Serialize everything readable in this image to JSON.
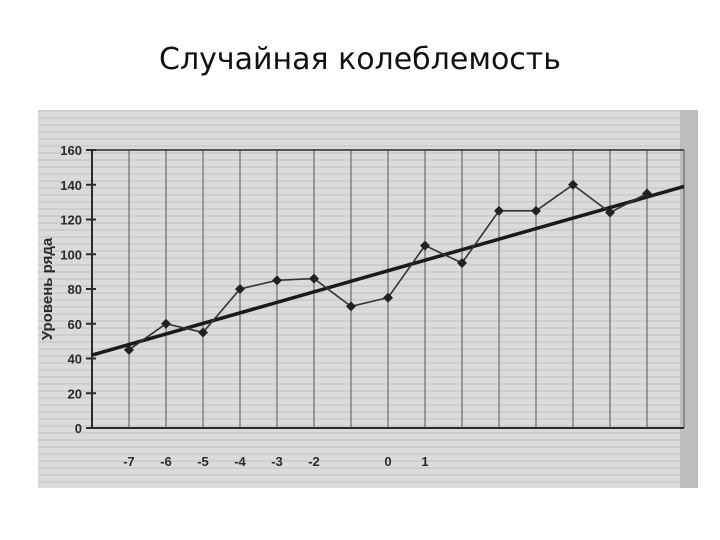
{
  "slide": {
    "title": "Случайная колеблемость"
  },
  "chart_data": {
    "type": "line",
    "ylabel": "Уровень ряда",
    "xlabel": "",
    "ylim": [
      0,
      160
    ],
    "yticks": [
      0,
      20,
      40,
      60,
      80,
      100,
      120,
      140,
      160
    ],
    "xticks": [
      "-7",
      "-6",
      "-5",
      "-4",
      "-3",
      "-2",
      "0",
      "1"
    ],
    "grid": "vertical",
    "series": [
      {
        "x": [
          -7,
          -6,
          -5,
          -4,
          -3,
          -2,
          -1,
          0,
          1,
          2,
          3,
          4,
          5,
          6,
          7
        ],
        "values": [
          45,
          60,
          55,
          80,
          85,
          86,
          70,
          75,
          105,
          95,
          125,
          125,
          140,
          124,
          135
        ]
      }
    ],
    "trend": {
      "x": [
        -8,
        8
      ],
      "values": [
        42,
        139
      ]
    }
  }
}
